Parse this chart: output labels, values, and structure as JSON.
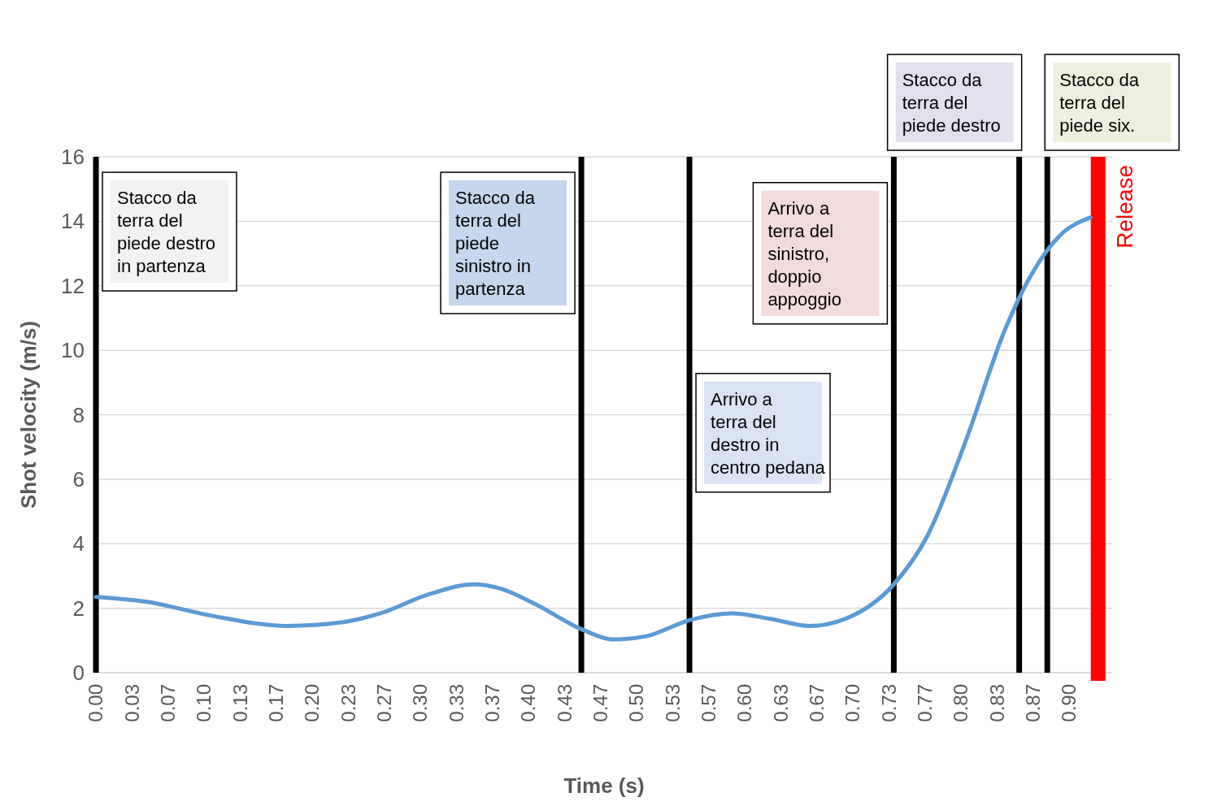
{
  "chart_data": {
    "type": "line",
    "xlabel": "Time (s)",
    "ylabel": "Shot velocity (m/s)",
    "xlim": [
      0,
      0.94
    ],
    "ylim": [
      0,
      16
    ],
    "yticks": [
      0,
      2,
      4,
      6,
      8,
      10,
      12,
      14,
      16
    ],
    "xticks": [
      {
        "value": 0,
        "label": "0.00"
      },
      {
        "value": 0.0333,
        "label": "0.03"
      },
      {
        "value": 0.0667,
        "label": "0.07"
      },
      {
        "value": 0.1,
        "label": "0.10"
      },
      {
        "value": 0.1333,
        "label": "0.13"
      },
      {
        "value": 0.1667,
        "label": "0.17"
      },
      {
        "value": 0.2,
        "label": "0.20"
      },
      {
        "value": 0.2333,
        "label": "0.23"
      },
      {
        "value": 0.2667,
        "label": "0.27"
      },
      {
        "value": 0.3,
        "label": "0.30"
      },
      {
        "value": 0.3333,
        "label": "0.33"
      },
      {
        "value": 0.3667,
        "label": "0.37"
      },
      {
        "value": 0.4,
        "label": "0.40"
      },
      {
        "value": 0.4333,
        "label": "0.43"
      },
      {
        "value": 0.4667,
        "label": "0.47"
      },
      {
        "value": 0.5,
        "label": "0.50"
      },
      {
        "value": 0.5333,
        "label": "0.53"
      },
      {
        "value": 0.5667,
        "label": "0.57"
      },
      {
        "value": 0.6,
        "label": "0.60"
      },
      {
        "value": 0.6333,
        "label": "0.63"
      },
      {
        "value": 0.6667,
        "label": "0.67"
      },
      {
        "value": 0.7,
        "label": "0.70"
      },
      {
        "value": 0.7333,
        "label": "0.73"
      },
      {
        "value": 0.7667,
        "label": "0.77"
      },
      {
        "value": 0.8,
        "label": "0.80"
      },
      {
        "value": 0.8333,
        "label": "0.83"
      },
      {
        "value": 0.8667,
        "label": "0.87"
      },
      {
        "value": 0.9,
        "label": "0.90"
      }
    ],
    "grid": "y",
    "marker": "none",
    "line_style": "solid",
    "series": [
      {
        "color": "#5b9bd5",
        "x": [
          0,
          0.047,
          0.105,
          0.177,
          0.227,
          0.263,
          0.307,
          0.35,
          0.372,
          0.408,
          0.449,
          0.48,
          0.509,
          0.549,
          0.588,
          0.624,
          0.66,
          0.696,
          0.738,
          0.769,
          0.805,
          0.841,
          0.862,
          0.891,
          0.92
        ],
        "values": [
          2.35,
          2.2,
          1.78,
          1.45,
          1.56,
          1.84,
          2.42,
          2.74,
          2.63,
          2.1,
          1.35,
          1.03,
          1.13,
          1.63,
          1.84,
          1.67,
          1.45,
          1.71,
          2.74,
          4.24,
          7.23,
          10.65,
          12.15,
          13.54,
          14.12
        ]
      }
    ],
    "ref_lines": [
      {
        "axis": "x",
        "value": 0,
        "label": "Stacco da terra del piede destro in partenza",
        "color": "#000000"
      },
      {
        "axis": "x",
        "value": 0.449,
        "label": "Stacco da terra del piede sinistro in partenza",
        "color": "#000000"
      },
      {
        "axis": "x",
        "value": 0.549,
        "label": "Arrivo a terra del destro in centro pedana",
        "color": "#000000"
      },
      {
        "axis": "x",
        "value": 0.738,
        "label": "Arrivo a terra del sinistro, doppio appoggio",
        "color": "#000000"
      },
      {
        "axis": "x",
        "value": 0.854,
        "label": "Stacco da terra del piede destro",
        "color": "#000000"
      },
      {
        "axis": "x",
        "value": 0.88,
        "label": "Stacco da terra del piede six.",
        "color": "#000000"
      },
      {
        "axis": "x",
        "value": 0.927,
        "label": "Release",
        "color": "#ff0000"
      }
    ]
  }
}
